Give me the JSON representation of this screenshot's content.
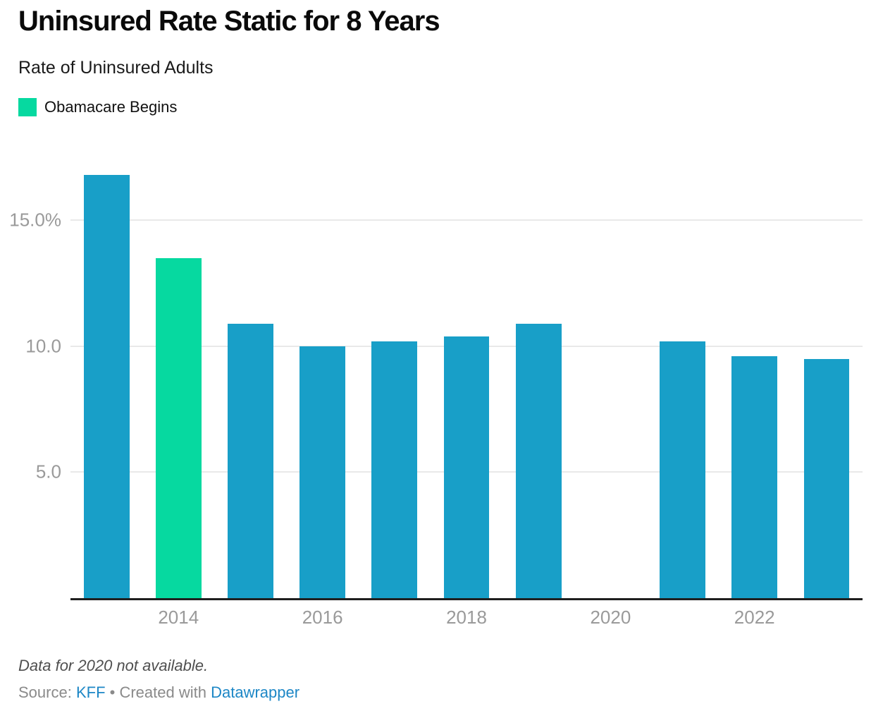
{
  "header": {
    "title": "Uninsured Rate Static for 8 Years",
    "subtitle": "Rate of Uninsured Adults"
  },
  "chart_data": {
    "type": "bar",
    "title": "Uninsured Rate Static for 8 Years",
    "subtitle": "Rate of Uninsured Adults",
    "categories": [
      "2013",
      "2014",
      "2015",
      "2016",
      "2017",
      "2018",
      "2019",
      "2020",
      "2021",
      "2022",
      "2023"
    ],
    "values": [
      16.8,
      13.5,
      10.9,
      10.0,
      10.2,
      10.4,
      10.9,
      null,
      10.2,
      9.6,
      9.5
    ],
    "unit": "%",
    "bar_color": "#189fc8",
    "highlight": {
      "category": "2014",
      "label": "Obamacare Begins",
      "color": "#06d9a0"
    },
    "ylim": [
      0,
      17.58
    ],
    "yticks": [
      {
        "value": 5,
        "label": "5.0"
      },
      {
        "value": 10,
        "label": "10.0"
      },
      {
        "value": 15,
        "label": "15.0%"
      }
    ],
    "xticks": [
      "2014",
      "2016",
      "2018",
      "2020",
      "2022"
    ],
    "grid": "horizontal",
    "legend_position": "top-left",
    "annotation": "Data for 2020 not available.",
    "colors": {
      "gridline": "#e9e9e9",
      "axis_line": "#1f1f1f",
      "tick_label": "#9a9a9a"
    }
  },
  "footer": {
    "note": "Data for 2020 not available.",
    "source_prefix": "Source:",
    "source_link": "KFF",
    "separator": "•",
    "created_with": "Created with",
    "created_link": "Datawrapper"
  }
}
